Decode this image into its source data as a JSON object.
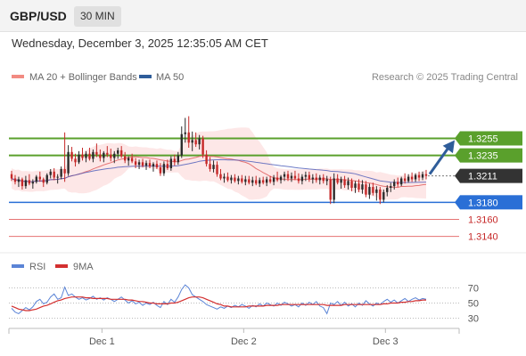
{
  "header": {
    "symbol": "GBP/USD",
    "timeframe": "30 MIN",
    "datetime": "Wednesday, December 3, 2025 12:35:05 AM CET"
  },
  "colors": {
    "candle_up": "#2a2a2a",
    "candle_down": "#c62828",
    "ma20": "#e57373",
    "bollinger_fill": "#fde3e3",
    "ma50": "#3f51b5",
    "resistance": "#5aa02c",
    "support": "#2a6fd6",
    "target_level": "#e57373",
    "current_price_tag": "#333333",
    "arrow": "#2f5d9a",
    "rsi": "#5b84d6",
    "rsi_ma": "#d32f2f"
  },
  "chart_data": [
    {
      "type": "candlestick",
      "legend": [
        {
          "name": "MA 20 + Bollinger Bands",
          "color": "#f28b82"
        },
        {
          "name": "MA 50",
          "color": "#2f5d9a"
        }
      ],
      "legend_placement": "top-left",
      "credit": "Research © 2025 Trading Central",
      "ylim": [
        1.3125,
        1.3315
      ],
      "last_price": 1.3211,
      "candles": [
        [
          1.3213,
          1.3217,
          1.3205,
          1.3208
        ],
        [
          1.3208,
          1.3212,
          1.3201,
          1.3204
        ],
        [
          1.3204,
          1.321,
          1.3198,
          1.3207
        ],
        [
          1.3207,
          1.3209,
          1.3195,
          1.3199
        ],
        [
          1.3199,
          1.3211,
          1.3196,
          1.3206
        ],
        [
          1.3206,
          1.3213,
          1.32,
          1.3202
        ],
        [
          1.3202,
          1.3207,
          1.3196,
          1.3204
        ],
        [
          1.3204,
          1.3212,
          1.3202,
          1.321
        ],
        [
          1.321,
          1.3216,
          1.3204,
          1.3207
        ],
        [
          1.3207,
          1.3209,
          1.3198,
          1.3203
        ],
        [
          1.3203,
          1.3214,
          1.3201,
          1.3212
        ],
        [
          1.3212,
          1.3219,
          1.3208,
          1.3216
        ],
        [
          1.3216,
          1.322,
          1.3206,
          1.3209
        ],
        [
          1.3209,
          1.3213,
          1.3202,
          1.321
        ],
        [
          1.321,
          1.3222,
          1.3207,
          1.3219
        ],
        [
          1.3219,
          1.3262,
          1.3204,
          1.3214
        ],
        [
          1.3214,
          1.3247,
          1.3211,
          1.3239
        ],
        [
          1.3239,
          1.3245,
          1.3228,
          1.3231
        ],
        [
          1.3231,
          1.3237,
          1.3222,
          1.3227
        ],
        [
          1.3227,
          1.324,
          1.3225,
          1.3236
        ],
        [
          1.3236,
          1.3244,
          1.3229,
          1.3232
        ],
        [
          1.3232,
          1.324,
          1.3227,
          1.3237
        ],
        [
          1.3237,
          1.3244,
          1.3229,
          1.3231
        ],
        [
          1.3231,
          1.3242,
          1.3227,
          1.3239
        ],
        [
          1.3239,
          1.3249,
          1.3233,
          1.3236
        ],
        [
          1.3236,
          1.3242,
          1.3228,
          1.3232
        ],
        [
          1.3232,
          1.324,
          1.3227,
          1.3238
        ],
        [
          1.3238,
          1.3246,
          1.3233,
          1.3236
        ],
        [
          1.3236,
          1.3243,
          1.3228,
          1.3232
        ],
        [
          1.3232,
          1.324,
          1.3226,
          1.3237
        ],
        [
          1.3237,
          1.3244,
          1.3231,
          1.3241
        ],
        [
          1.3241,
          1.3246,
          1.3232,
          1.3234
        ],
        [
          1.3234,
          1.3239,
          1.3226,
          1.3229
        ],
        [
          1.3229,
          1.3234,
          1.3223,
          1.3232
        ],
        [
          1.3232,
          1.3237,
          1.3226,
          1.3228
        ],
        [
          1.3228,
          1.3232,
          1.322,
          1.3224
        ],
        [
          1.3224,
          1.323,
          1.3219,
          1.3227
        ],
        [
          1.3227,
          1.3231,
          1.3221,
          1.3223
        ],
        [
          1.3223,
          1.3229,
          1.3218,
          1.3226
        ],
        [
          1.3226,
          1.323,
          1.322,
          1.3222
        ],
        [
          1.3222,
          1.3227,
          1.3216,
          1.3225
        ],
        [
          1.3225,
          1.3229,
          1.3219,
          1.3221
        ],
        [
          1.3221,
          1.3226,
          1.3211,
          1.3214
        ],
        [
          1.3214,
          1.3228,
          1.3211,
          1.3225
        ],
        [
          1.3225,
          1.323,
          1.3218,
          1.322
        ],
        [
          1.322,
          1.3234,
          1.3217,
          1.3231
        ],
        [
          1.3231,
          1.3236,
          1.3223,
          1.3227
        ],
        [
          1.3227,
          1.3239,
          1.3224,
          1.3235
        ],
        [
          1.3235,
          1.3269,
          1.3232,
          1.326
        ],
        [
          1.326,
          1.3279,
          1.325,
          1.3262
        ],
        [
          1.3262,
          1.3281,
          1.3244,
          1.325
        ],
        [
          1.325,
          1.3263,
          1.324,
          1.3253
        ],
        [
          1.3253,
          1.3262,
          1.3245,
          1.3248
        ],
        [
          1.3248,
          1.3259,
          1.3242,
          1.3255
        ],
        [
          1.3255,
          1.3258,
          1.3232,
          1.3236
        ],
        [
          1.3236,
          1.3241,
          1.3222,
          1.3225
        ],
        [
          1.3225,
          1.3233,
          1.3216,
          1.3219
        ],
        [
          1.3219,
          1.3229,
          1.3215,
          1.3224
        ],
        [
          1.3224,
          1.3228,
          1.321,
          1.3213
        ],
        [
          1.3213,
          1.3219,
          1.3206,
          1.3208
        ],
        [
          1.3208,
          1.3214,
          1.3203,
          1.321
        ],
        [
          1.321,
          1.3215,
          1.3204,
          1.3206
        ],
        [
          1.3206,
          1.3212,
          1.3202,
          1.3209
        ],
        [
          1.3209,
          1.3213,
          1.3203,
          1.3205
        ],
        [
          1.3205,
          1.3211,
          1.3201,
          1.3208
        ],
        [
          1.3208,
          1.3212,
          1.3202,
          1.3204
        ],
        [
          1.3204,
          1.3211,
          1.32,
          1.3207
        ],
        [
          1.3207,
          1.3211,
          1.3201,
          1.3203
        ],
        [
          1.3203,
          1.321,
          1.3199,
          1.3206
        ],
        [
          1.3206,
          1.3211,
          1.32,
          1.3202
        ],
        [
          1.3202,
          1.3209,
          1.3198,
          1.3206
        ],
        [
          1.3206,
          1.321,
          1.3201,
          1.3203
        ],
        [
          1.3203,
          1.321,
          1.3199,
          1.3207
        ],
        [
          1.3207,
          1.3211,
          1.3202,
          1.3204
        ],
        [
          1.3204,
          1.3212,
          1.32,
          1.3209
        ],
        [
          1.3209,
          1.3216,
          1.3204,
          1.3206
        ],
        [
          1.3206,
          1.3212,
          1.3202,
          1.321
        ],
        [
          1.321,
          1.3216,
          1.3205,
          1.3213
        ],
        [
          1.3213,
          1.3217,
          1.3205,
          1.3208
        ],
        [
          1.3208,
          1.3215,
          1.3204,
          1.3211
        ],
        [
          1.3211,
          1.3217,
          1.3206,
          1.3208
        ],
        [
          1.3208,
          1.3214,
          1.3202,
          1.3205
        ],
        [
          1.3205,
          1.3213,
          1.3201,
          1.321
        ],
        [
          1.321,
          1.3216,
          1.3205,
          1.3212
        ],
        [
          1.3212,
          1.3216,
          1.3204,
          1.3207
        ],
        [
          1.3207,
          1.3213,
          1.3202,
          1.3209
        ],
        [
          1.3209,
          1.3214,
          1.3203,
          1.3206
        ],
        [
          1.3206,
          1.3212,
          1.3201,
          1.3209
        ],
        [
          1.3209,
          1.3213,
          1.3202,
          1.3205
        ],
        [
          1.3205,
          1.3211,
          1.32,
          1.3207
        ],
        [
          1.3207,
          1.321,
          1.3178,
          1.3183
        ],
        [
          1.3183,
          1.3214,
          1.3179,
          1.3208
        ],
        [
          1.3208,
          1.3213,
          1.3201,
          1.3203
        ],
        [
          1.3203,
          1.321,
          1.3196,
          1.3207
        ],
        [
          1.3207,
          1.3211,
          1.3197,
          1.32
        ],
        [
          1.32,
          1.3209,
          1.3195,
          1.3205
        ],
        [
          1.3205,
          1.3208,
          1.3193,
          1.3197
        ],
        [
          1.3197,
          1.3205,
          1.3191,
          1.3202
        ],
        [
          1.3202,
          1.3207,
          1.3192,
          1.3195
        ],
        [
          1.3195,
          1.3206,
          1.319,
          1.3201
        ],
        [
          1.3201,
          1.3205,
          1.3186,
          1.3189
        ],
        [
          1.3189,
          1.3202,
          1.3184,
          1.3198
        ],
        [
          1.3198,
          1.3203,
          1.3188,
          1.3191
        ],
        [
          1.3191,
          1.3199,
          1.3182,
          1.3195
        ],
        [
          1.3195,
          1.3198,
          1.3178,
          1.3183
        ],
        [
          1.3183,
          1.3195,
          1.318,
          1.3192
        ],
        [
          1.3192,
          1.32,
          1.3187,
          1.3197
        ],
        [
          1.3197,
          1.3203,
          1.3192,
          1.3199
        ],
        [
          1.3199,
          1.3207,
          1.3195,
          1.3204
        ],
        [
          1.3204,
          1.3209,
          1.3198,
          1.3201
        ],
        [
          1.3201,
          1.321,
          1.3199,
          1.3208
        ],
        [
          1.3208,
          1.3214,
          1.3202,
          1.3205
        ],
        [
          1.3205,
          1.3213,
          1.3203,
          1.321
        ],
        [
          1.321,
          1.3215,
          1.3204,
          1.3207
        ],
        [
          1.3207,
          1.3214,
          1.3204,
          1.3212
        ],
        [
          1.3212,
          1.3216,
          1.3205,
          1.3209
        ],
        [
          1.3209,
          1.3216,
          1.3206,
          1.3213
        ],
        [
          1.3213,
          1.3218,
          1.3207,
          1.3211
        ]
      ],
      "levels": [
        {
          "value": 1.3255,
          "label": "1.3255",
          "kind": "resistance",
          "style": "tag"
        },
        {
          "value": 1.3235,
          "label": "1.3235",
          "kind": "resistance",
          "style": "tag"
        },
        {
          "value": 1.3211,
          "label": "1.3211",
          "kind": "current",
          "style": "tag"
        },
        {
          "value": 1.318,
          "label": "1.3180",
          "kind": "support",
          "style": "tag"
        },
        {
          "value": 1.316,
          "label": "1.3160",
          "kind": "target",
          "style": "text"
        },
        {
          "value": 1.314,
          "label": "1.3140",
          "kind": "target",
          "style": "text"
        }
      ],
      "projection": {
        "from": 1.3211,
        "to": 1.324
      }
    },
    {
      "type": "line",
      "legend": [
        {
          "name": "RSI",
          "color": "#5b84d6"
        },
        {
          "name": "9MA",
          "color": "#d32f2f"
        }
      ],
      "ylim": [
        20,
        80
      ],
      "yticks": [
        70,
        50,
        30
      ],
      "series": [
        {
          "name": "RSI",
          "values": [
            43,
            38,
            36,
            40,
            44,
            41,
            45,
            52,
            55,
            49,
            51,
            58,
            62,
            55,
            57,
            71,
            60,
            62,
            58,
            55,
            57,
            54,
            56,
            59,
            55,
            57,
            54,
            57,
            55,
            52,
            55,
            58,
            54,
            50,
            53,
            49,
            51,
            47,
            50,
            48,
            51,
            47,
            44,
            52,
            48,
            55,
            51,
            58,
            68,
            74,
            70,
            61,
            58,
            55,
            52,
            48,
            46,
            44,
            42,
            45,
            43,
            46,
            44,
            47,
            45,
            48,
            46,
            43,
            47,
            45,
            49,
            46,
            50,
            48,
            46,
            50,
            47,
            51,
            49,
            46,
            48,
            45,
            50,
            47,
            51,
            48,
            52,
            46,
            44,
            36,
            50,
            48,
            52,
            47,
            51,
            46,
            49,
            45,
            50,
            47,
            53,
            49,
            46,
            50,
            48,
            52,
            55,
            51,
            54,
            50,
            53,
            56,
            52,
            55,
            57,
            54,
            56,
            55
          ]
        },
        {
          "name": "9MA",
          "values": [
            46,
            44,
            42,
            41,
            40,
            40,
            41,
            42,
            44,
            46,
            47,
            49,
            51,
            53,
            54,
            56,
            57,
            58,
            58,
            58,
            58,
            57,
            57,
            56,
            56,
            56,
            56,
            56,
            55,
            55,
            55,
            55,
            55,
            54,
            54,
            53,
            52,
            52,
            51,
            50,
            50,
            49,
            49,
            49,
            49,
            50,
            50,
            51,
            53,
            55,
            57,
            58,
            58,
            58,
            57,
            55,
            53,
            51,
            49,
            48,
            46,
            46,
            45,
            45,
            45,
            45,
            45,
            46,
            46,
            46,
            46,
            46,
            47,
            47,
            47,
            47,
            48,
            48,
            48,
            48,
            48,
            48,
            48,
            48,
            48,
            48,
            48,
            48,
            48,
            47,
            47,
            47,
            47,
            47,
            48,
            48,
            48,
            48,
            48,
            48,
            48,
            48,
            48,
            48,
            48,
            49,
            49,
            50,
            50,
            50,
            51,
            51,
            52,
            52,
            53,
            53,
            54,
            54
          ]
        }
      ]
    }
  ],
  "x_axis": {
    "labels": [
      {
        "text": "Dec 1",
        "index": 25
      },
      {
        "text": "Dec 2",
        "index": 65
      },
      {
        "text": "Dec 3",
        "index": 105
      }
    ]
  }
}
